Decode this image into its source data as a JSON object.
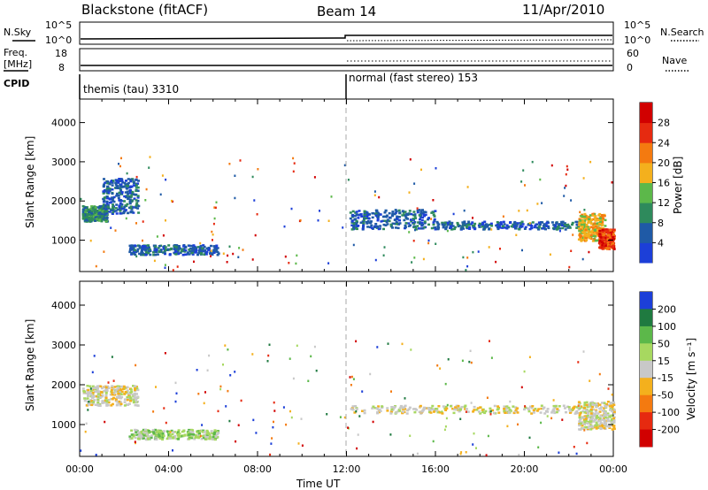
{
  "header": {
    "title": "Blackstone (fitACF)",
    "beam": "Beam 14",
    "date": "11/Apr/2010"
  },
  "ancillary": {
    "nsky_label": "N.Sky",
    "nsearch_label": "N.Search",
    "freq_label": "Freq.",
    "freq_unit": "[MHz]",
    "nave_label": "Nave",
    "cpid_label": "CPID",
    "count_ticks": [
      "10^5",
      "10^0"
    ],
    "freq_ticks": [
      "18",
      "8"
    ],
    "nave_ticks": [
      "60",
      "0"
    ],
    "cpid_modes": [
      {
        "label": "themis (tau) 3310",
        "start_hour": 0
      },
      {
        "label": "normal (fast stereo) 153",
        "start_hour": 12
      }
    ]
  },
  "chart_data": [
    {
      "type": "heatmap",
      "name": "power",
      "xlabel": "",
      "ylabel": "Slant Range [km]",
      "xlim": [
        0,
        24
      ],
      "ylim": [
        200,
        4600
      ],
      "y_ticks": [
        "1000",
        "2000",
        "3000",
        "4000"
      ],
      "colorbar": {
        "label": "Power [dB]",
        "ticks": [
          "4",
          "8",
          "12",
          "16",
          "20",
          "24",
          "28"
        ],
        "colors": [
          "#1c3fd8",
          "#1f5aa6",
          "#2e8a5c",
          "#5cb84a",
          "#f4b01d",
          "#f47a10",
          "#e62a10",
          "#d10000"
        ]
      },
      "bands": [
        {
          "t0": 0.1,
          "t1": 1.2,
          "r0": 1500,
          "r1": 1900,
          "level": 2
        },
        {
          "t0": 1.0,
          "t1": 2.6,
          "r0": 1700,
          "r1": 2600,
          "level": 1
        },
        {
          "t0": 2.2,
          "t1": 6.2,
          "r0": 650,
          "r1": 900,
          "level": 1
        },
        {
          "t0": 12.1,
          "t1": 16.0,
          "r0": 1300,
          "r1": 1800,
          "level": 1
        },
        {
          "t0": 16.0,
          "t1": 22.4,
          "r0": 1300,
          "r1": 1500,
          "level": 1
        },
        {
          "t0": 22.4,
          "t1": 23.6,
          "r0": 1000,
          "r1": 1700,
          "level": 4
        },
        {
          "t0": 23.3,
          "t1": 24.0,
          "r0": 800,
          "r1": 1300,
          "level": 6
        }
      ]
    },
    {
      "type": "heatmap",
      "name": "velocity",
      "xlabel": "Time UT",
      "ylabel": "Slant Range [km]",
      "xlim": [
        0,
        24
      ],
      "ylim": [
        200,
        4600
      ],
      "y_ticks": [
        "1000",
        "2000",
        "3000",
        "4000"
      ],
      "x_ticks": [
        "00:00",
        "04:00",
        "08:00",
        "12:00",
        "16:00",
        "20:00",
        "00:00"
      ],
      "colorbar": {
        "label": "Velocity [m s⁻¹]",
        "ticks": [
          "200",
          "100",
          "50",
          "15",
          "-15",
          "-50",
          "-100",
          "-200"
        ],
        "colors": [
          "#1c3fd8",
          "#1f7a40",
          "#5cb84a",
          "#a7d860",
          "#c8c8c8",
          "#f4b01d",
          "#f47a10",
          "#e62a10",
          "#d10000"
        ]
      },
      "bands": [
        {
          "t0": 0.1,
          "t1": 2.6,
          "r0": 1500,
          "r1": 2000,
          "level": 4
        },
        {
          "t0": 2.2,
          "t1": 6.2,
          "r0": 650,
          "r1": 900,
          "level": 3
        },
        {
          "t0": 12.1,
          "t1": 22.4,
          "r0": 1300,
          "r1": 1500,
          "level": 4
        },
        {
          "t0": 22.4,
          "t1": 24.0,
          "r0": 900,
          "r1": 1600,
          "level": 4
        }
      ]
    }
  ]
}
